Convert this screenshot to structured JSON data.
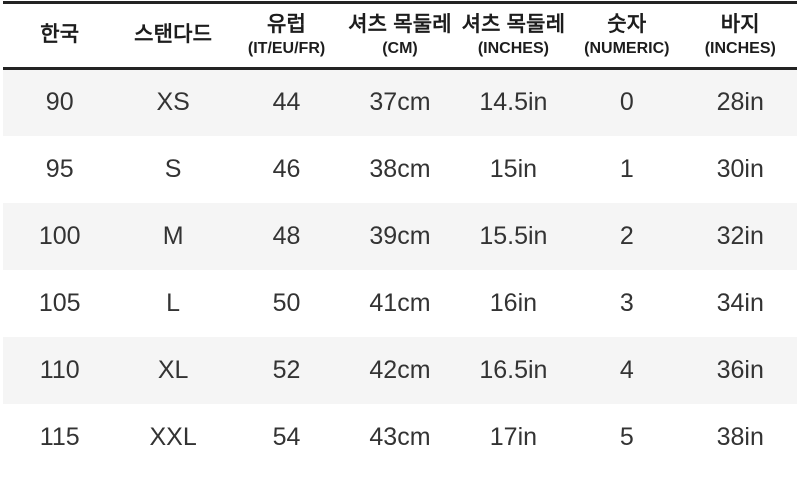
{
  "chart_data": {
    "type": "table",
    "title": "",
    "columns": [
      {
        "label": "한국",
        "sub": ""
      },
      {
        "label": "스탠다드",
        "sub": ""
      },
      {
        "label": "유럽",
        "sub": "(IT/EU/FR)"
      },
      {
        "label": "셔츠 목둘레",
        "sub": "(CM)"
      },
      {
        "label": "셔츠 목둘레",
        "sub": "(INCHES)"
      },
      {
        "label": "숫자",
        "sub": "(NUMERIC)"
      },
      {
        "label": "바지",
        "sub": "(INCHES)"
      }
    ],
    "rows": [
      [
        "90",
        "XS",
        "44",
        "37cm",
        "14.5in",
        "0",
        "28in"
      ],
      [
        "95",
        "S",
        "46",
        "38cm",
        "15in",
        "1",
        "30in"
      ],
      [
        "100",
        "M",
        "48",
        "39cm",
        "15.5in",
        "2",
        "32in"
      ],
      [
        "105",
        "L",
        "50",
        "41cm",
        "16in",
        "3",
        "34in"
      ],
      [
        "110",
        "XL",
        "52",
        "42cm",
        "16.5in",
        "4",
        "36in"
      ],
      [
        "115",
        "XXL",
        "54",
        "43cm",
        "17in",
        "5",
        "38in"
      ]
    ],
    "layout": {
      "zebra_stripe_rows": [
        1,
        3,
        5
      ],
      "header_border": "top-and-bottom"
    }
  },
  "colors": {
    "background": "#ffffff",
    "stripe_gray": "#f5f5f5",
    "header_border_dark": "#232323",
    "header_text": "#1d1d1d",
    "body_text": "#333333"
  }
}
